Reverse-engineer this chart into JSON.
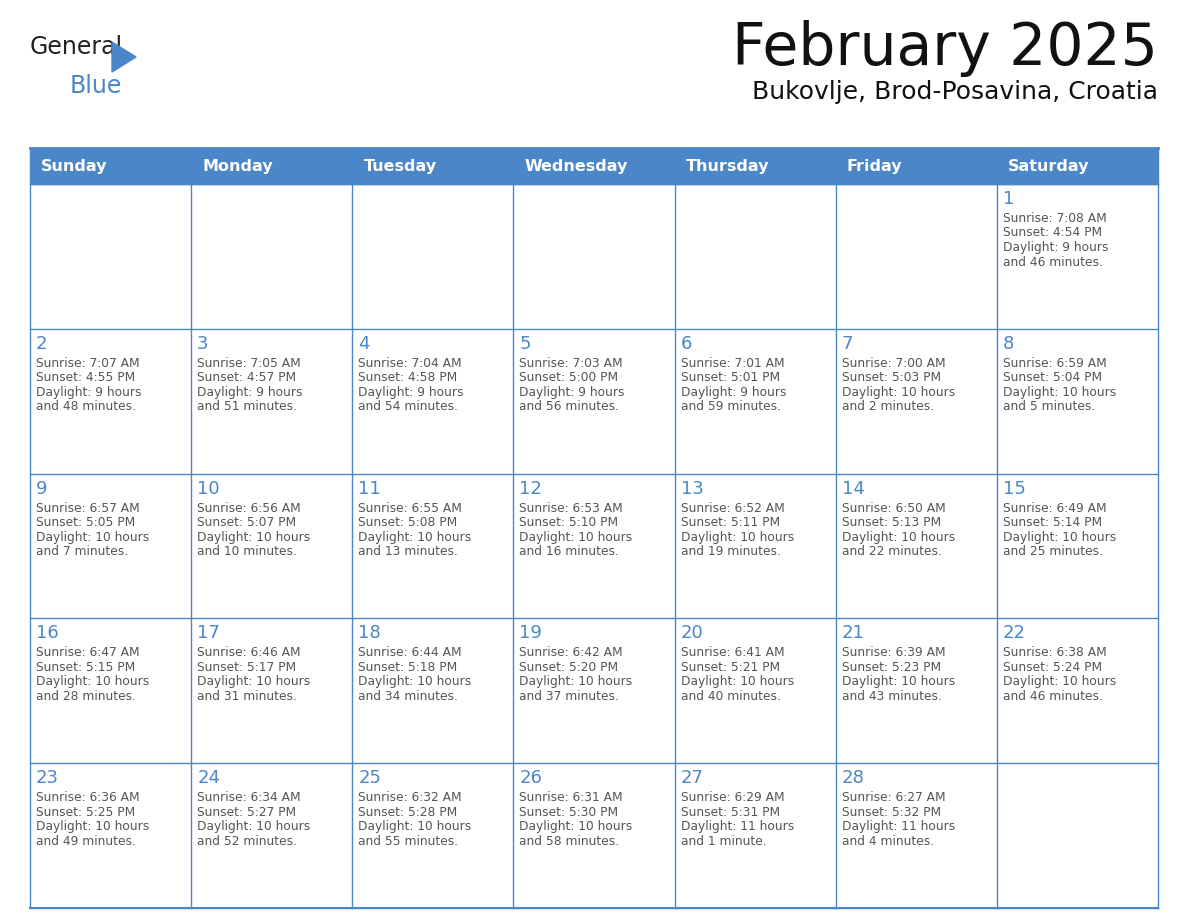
{
  "title": "February 2025",
  "subtitle": "Bukovlje, Brod-Posavina, Croatia",
  "days_of_week": [
    "Sunday",
    "Monday",
    "Tuesday",
    "Wednesday",
    "Thursday",
    "Friday",
    "Saturday"
  ],
  "header_bg": "#4a86c8",
  "header_text": "#ffffff",
  "cell_bg": "#ffffff",
  "border_color": "#4a86c8",
  "day_number_color": "#4a86c8",
  "text_color": "#555555",
  "logo_color_general": "#222222",
  "logo_color_blue": "#4a86c8",
  "calendar_data": [
    [
      {
        "day": null,
        "info": ""
      },
      {
        "day": null,
        "info": ""
      },
      {
        "day": null,
        "info": ""
      },
      {
        "day": null,
        "info": ""
      },
      {
        "day": null,
        "info": ""
      },
      {
        "day": null,
        "info": ""
      },
      {
        "day": 1,
        "info": "Sunrise: 7:08 AM\nSunset: 4:54 PM\nDaylight: 9 hours\nand 46 minutes."
      }
    ],
    [
      {
        "day": 2,
        "info": "Sunrise: 7:07 AM\nSunset: 4:55 PM\nDaylight: 9 hours\nand 48 minutes."
      },
      {
        "day": 3,
        "info": "Sunrise: 7:05 AM\nSunset: 4:57 PM\nDaylight: 9 hours\nand 51 minutes."
      },
      {
        "day": 4,
        "info": "Sunrise: 7:04 AM\nSunset: 4:58 PM\nDaylight: 9 hours\nand 54 minutes."
      },
      {
        "day": 5,
        "info": "Sunrise: 7:03 AM\nSunset: 5:00 PM\nDaylight: 9 hours\nand 56 minutes."
      },
      {
        "day": 6,
        "info": "Sunrise: 7:01 AM\nSunset: 5:01 PM\nDaylight: 9 hours\nand 59 minutes."
      },
      {
        "day": 7,
        "info": "Sunrise: 7:00 AM\nSunset: 5:03 PM\nDaylight: 10 hours\nand 2 minutes."
      },
      {
        "day": 8,
        "info": "Sunrise: 6:59 AM\nSunset: 5:04 PM\nDaylight: 10 hours\nand 5 minutes."
      }
    ],
    [
      {
        "day": 9,
        "info": "Sunrise: 6:57 AM\nSunset: 5:05 PM\nDaylight: 10 hours\nand 7 minutes."
      },
      {
        "day": 10,
        "info": "Sunrise: 6:56 AM\nSunset: 5:07 PM\nDaylight: 10 hours\nand 10 minutes."
      },
      {
        "day": 11,
        "info": "Sunrise: 6:55 AM\nSunset: 5:08 PM\nDaylight: 10 hours\nand 13 minutes."
      },
      {
        "day": 12,
        "info": "Sunrise: 6:53 AM\nSunset: 5:10 PM\nDaylight: 10 hours\nand 16 minutes."
      },
      {
        "day": 13,
        "info": "Sunrise: 6:52 AM\nSunset: 5:11 PM\nDaylight: 10 hours\nand 19 minutes."
      },
      {
        "day": 14,
        "info": "Sunrise: 6:50 AM\nSunset: 5:13 PM\nDaylight: 10 hours\nand 22 minutes."
      },
      {
        "day": 15,
        "info": "Sunrise: 6:49 AM\nSunset: 5:14 PM\nDaylight: 10 hours\nand 25 minutes."
      }
    ],
    [
      {
        "day": 16,
        "info": "Sunrise: 6:47 AM\nSunset: 5:15 PM\nDaylight: 10 hours\nand 28 minutes."
      },
      {
        "day": 17,
        "info": "Sunrise: 6:46 AM\nSunset: 5:17 PM\nDaylight: 10 hours\nand 31 minutes."
      },
      {
        "day": 18,
        "info": "Sunrise: 6:44 AM\nSunset: 5:18 PM\nDaylight: 10 hours\nand 34 minutes."
      },
      {
        "day": 19,
        "info": "Sunrise: 6:42 AM\nSunset: 5:20 PM\nDaylight: 10 hours\nand 37 minutes."
      },
      {
        "day": 20,
        "info": "Sunrise: 6:41 AM\nSunset: 5:21 PM\nDaylight: 10 hours\nand 40 minutes."
      },
      {
        "day": 21,
        "info": "Sunrise: 6:39 AM\nSunset: 5:23 PM\nDaylight: 10 hours\nand 43 minutes."
      },
      {
        "day": 22,
        "info": "Sunrise: 6:38 AM\nSunset: 5:24 PM\nDaylight: 10 hours\nand 46 minutes."
      }
    ],
    [
      {
        "day": 23,
        "info": "Sunrise: 6:36 AM\nSunset: 5:25 PM\nDaylight: 10 hours\nand 49 minutes."
      },
      {
        "day": 24,
        "info": "Sunrise: 6:34 AM\nSunset: 5:27 PM\nDaylight: 10 hours\nand 52 minutes."
      },
      {
        "day": 25,
        "info": "Sunrise: 6:32 AM\nSunset: 5:28 PM\nDaylight: 10 hours\nand 55 minutes."
      },
      {
        "day": 26,
        "info": "Sunrise: 6:31 AM\nSunset: 5:30 PM\nDaylight: 10 hours\nand 58 minutes."
      },
      {
        "day": 27,
        "info": "Sunrise: 6:29 AM\nSunset: 5:31 PM\nDaylight: 11 hours\nand 1 minute."
      },
      {
        "day": 28,
        "info": "Sunrise: 6:27 AM\nSunset: 5:32 PM\nDaylight: 11 hours\nand 4 minutes."
      },
      {
        "day": null,
        "info": ""
      }
    ]
  ]
}
